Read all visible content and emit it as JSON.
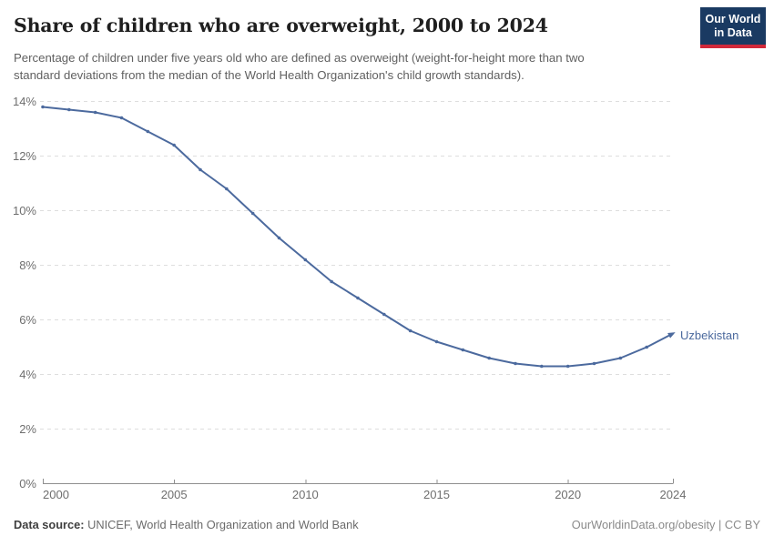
{
  "header": {
    "title": "Share of children who are overweight, 2000 to 2024",
    "subtitle_line1": "Percentage of children under five years old who are defined as overweight (weight-for-height more than two",
    "subtitle_line2": "standard deviations from the median of the World Health Organization's child growth standards).",
    "logo": {
      "line1": "Our World",
      "line2": "in Data"
    }
  },
  "chart_data": {
    "type": "line",
    "title": "Share of children who are overweight, 2000 to 2024",
    "entity_label": "Uzbekistan",
    "x": [
      2000,
      2001,
      2002,
      2003,
      2004,
      2005,
      2006,
      2007,
      2008,
      2009,
      2010,
      2011,
      2012,
      2013,
      2014,
      2015,
      2016,
      2017,
      2018,
      2019,
      2020,
      2021,
      2022,
      2023,
      2024
    ],
    "values": [
      13.8,
      13.7,
      13.6,
      13.4,
      12.9,
      12.4,
      11.5,
      10.8,
      9.9,
      9.0,
      8.2,
      7.4,
      6.8,
      6.2,
      5.6,
      5.2,
      4.9,
      4.6,
      4.4,
      4.3,
      4.3,
      4.4,
      4.6,
      5.0,
      5.5
    ],
    "xlabel": "",
    "ylabel": "",
    "ylim": [
      0,
      14
    ],
    "xlim": [
      2000,
      2024
    ],
    "y_tick_labels": [
      "0%",
      "2%",
      "4%",
      "6%",
      "8%",
      "10%",
      "12%",
      "14%"
    ],
    "x_tick_labels": [
      "2000",
      "2005",
      "2010",
      "2015",
      "2020",
      "2024"
    ],
    "grid": "horizontal-dashed",
    "legend_position": "line-end-label",
    "line_color": "#4c6a9e",
    "grid_color": "#dedede",
    "axis_color": "#8f8f8f",
    "tick_label_color": "#6e6e6e"
  },
  "footer": {
    "source_label": "Data source:",
    "source_value": "UNICEF, World Health Organization and World Bank",
    "license": "OurWorldinData.org/obesity | CC BY"
  }
}
